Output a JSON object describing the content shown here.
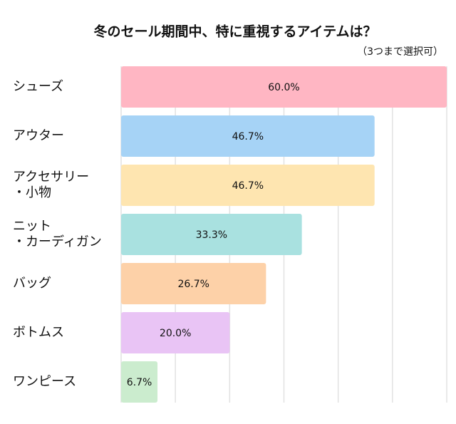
{
  "chart_data": {
    "type": "bar",
    "orientation": "horizontal",
    "title": "冬のセール期間中、特に重視するアイテムは？",
    "subtitle": "（3つまで選択可）",
    "categories": [
      [
        "シューズ"
      ],
      [
        "アウター"
      ],
      [
        "アクセサリー",
        "・小物"
      ],
      [
        "ニット",
        "・カーディガン"
      ],
      [
        "バッグ"
      ],
      [
        "ボトムス"
      ],
      [
        "ワンピース"
      ]
    ],
    "values": [
      60.0,
      46.7,
      46.7,
      33.3,
      26.7,
      20.0,
      6.7
    ],
    "value_labels": [
      "60.0%",
      "46.7%",
      "46.7%",
      "33.3%",
      "26.7%",
      "20.0%",
      "6.7%"
    ],
    "colors": [
      "#ffb6c3",
      "#a6d3f6",
      "#fee5b0",
      "#a9e1e0",
      "#fdd1a8",
      "#e9c4f5",
      "#cbecce"
    ],
    "xlim": [
      0,
      60
    ],
    "xticks": [
      0,
      10,
      20,
      30,
      40,
      50,
      60
    ],
    "grid": true
  }
}
